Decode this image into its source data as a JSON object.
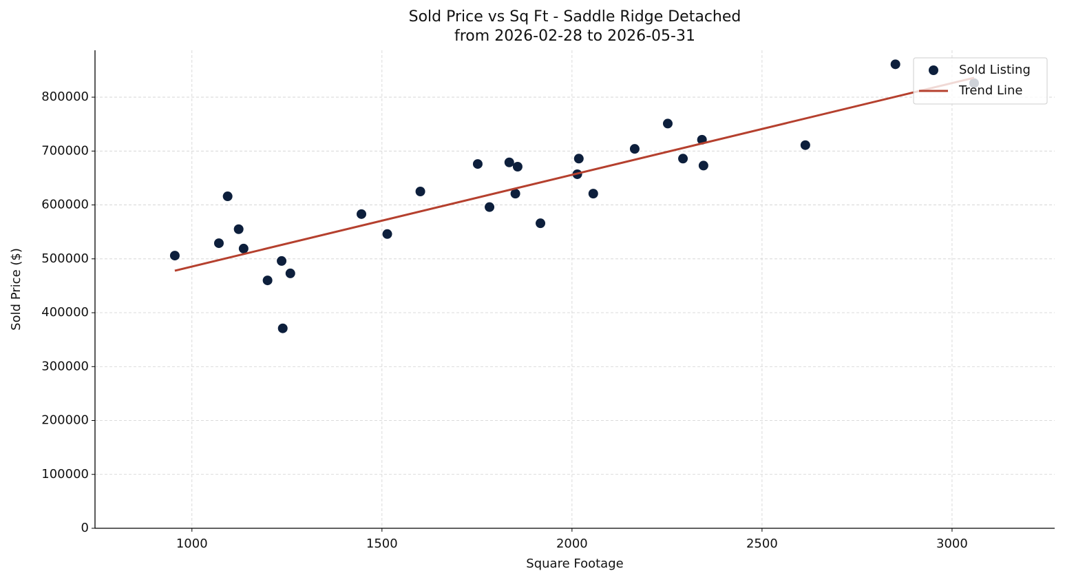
{
  "chart_data": {
    "type": "scatter",
    "title": "Sold Price vs Sq Ft - Saddle Ridge Detached",
    "subtitle": "from 2026-02-28 to 2026-05-31",
    "x_label": "Square Footage",
    "y_label": "Sold Price ($)",
    "xlim": [
      745,
      3270
    ],
    "ylim": [
      0,
      887000
    ],
    "xticks": [
      1000,
      1500,
      2000,
      2500,
      3000
    ],
    "yticks": [
      0,
      100000,
      200000,
      300000,
      400000,
      500000,
      600000,
      700000,
      800000
    ],
    "grid": true,
    "legend": "upper right",
    "series": [
      {
        "name": "Sold Listing",
        "type": "scatter",
        "color": "#0d1f3c",
        "x": [
          955,
          1071,
          1094,
          1123,
          1136,
          1199,
          1236,
          1239,
          1259,
          1446,
          1514,
          1601,
          1752,
          1783,
          1835,
          1851,
          1857,
          1917,
          2014,
          2018,
          2056,
          2165,
          2252,
          2292,
          2342,
          2346,
          2614,
          2851,
          3058
        ],
        "values": [
          506000,
          529000,
          616000,
          555000,
          519000,
          460000,
          496000,
          371000,
          473000,
          583000,
          546000,
          625000,
          676000,
          596000,
          679000,
          621000,
          671000,
          566000,
          657000,
          686000,
          621000,
          704000,
          751000,
          686000,
          721000,
          673000,
          711000,
          861000,
          826000
        ]
      },
      {
        "name": "Trend Line",
        "type": "line",
        "color": "#b5402e",
        "x": [
          955,
          3058
        ],
        "values": [
          478000,
          836000
        ]
      }
    ]
  }
}
